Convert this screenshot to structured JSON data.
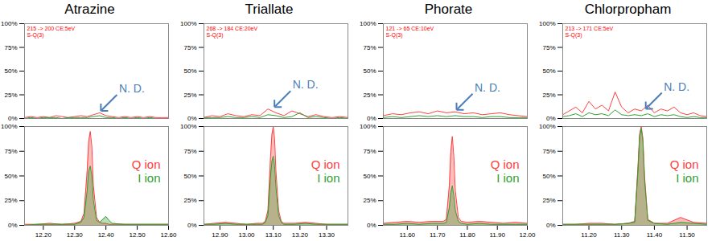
{
  "chart_data": [
    {
      "type": "line",
      "title": "Atrazine",
      "subtitle": [
        "215 -> 200 CE:5eV",
        "S-Q(3)"
      ],
      "x": [
        12.14,
        12.16,
        12.18,
        12.2,
        12.22,
        12.24,
        12.26,
        12.28,
        12.3,
        12.32,
        12.34,
        12.36,
        12.38,
        12.4,
        12.42,
        12.44,
        12.46,
        12.48,
        12.5,
        12.52,
        12.54,
        12.56,
        12.58,
        12.6
      ],
      "series": [
        {
          "color": "#ff4040",
          "values": [
            1,
            2,
            1,
            2,
            1,
            3,
            2,
            1,
            2,
            3,
            2,
            4,
            6,
            3,
            2,
            1,
            2,
            1,
            2,
            1,
            2,
            1,
            1,
            1
          ]
        },
        {
          "color": "#30a030",
          "values": [
            0,
            1,
            0,
            1,
            1,
            1,
            0,
            1,
            1,
            1,
            1,
            2,
            3,
            1,
            1,
            0,
            1,
            0,
            1,
            0,
            1,
            0,
            0,
            0
          ]
        }
      ],
      "xlim": [
        12.14,
        12.6
      ],
      "ylim": [
        0,
        100
      ],
      "yticks": [
        {
          "value": 0,
          "label": "0%"
        },
        {
          "value": 25,
          "label": "25%"
        },
        {
          "value": 50,
          "label": "50%"
        },
        {
          "value": 75,
          "label": "75%"
        },
        {
          "value": 100,
          "label": "100%"
        }
      ],
      "tick_labels": "y",
      "grid": false,
      "annotations": [
        {
          "text": "N. D.",
          "x": 12.38,
          "y": 6
        }
      ]
    },
    {
      "type": "area",
      "x": [
        12.14,
        12.18,
        12.22,
        12.26,
        12.3,
        12.32,
        12.33,
        12.34,
        12.345,
        12.35,
        12.355,
        12.36,
        12.37,
        12.38,
        12.39,
        12.4,
        12.41,
        12.42,
        12.46,
        12.5,
        12.54,
        12.58,
        12.6
      ],
      "series": [
        {
          "name": "Q ion",
          "color": "#ff4040",
          "values": [
            1,
            1,
            2,
            1,
            2,
            4,
            12,
            55,
            85,
            95,
            80,
            40,
            8,
            3,
            2,
            2,
            1,
            1,
            1,
            1,
            1,
            1,
            1
          ]
        },
        {
          "name": "I ion",
          "color": "#30a030",
          "values": [
            0,
            1,
            1,
            1,
            1,
            3,
            8,
            35,
            55,
            60,
            50,
            25,
            5,
            3,
            6,
            9,
            5,
            2,
            1,
            1,
            1,
            1,
            1
          ]
        }
      ],
      "xlim": [
        12.14,
        12.6
      ],
      "ylim": [
        0,
        100
      ],
      "xticks": [
        {
          "value": 12.2,
          "label": "12.20"
        },
        {
          "value": 12.3,
          "label": "12.30"
        },
        {
          "value": 12.4,
          "label": "12.40"
        },
        {
          "value": 12.5,
          "label": "12.50"
        },
        {
          "value": 12.6,
          "label": "12.60"
        }
      ],
      "yticks": [
        {
          "value": 0,
          "label": "0%"
        },
        {
          "value": 25,
          "label": "25%"
        },
        {
          "value": 50,
          "label": "50%"
        },
        {
          "value": 75,
          "label": "75%"
        },
        {
          "value": 100,
          "label": "100%"
        }
      ],
      "legend": "right",
      "grid": false
    },
    {
      "type": "line",
      "title": "Triallate",
      "subtitle": [
        "268 -> 184 CE:20eV",
        "S-Q(3)"
      ],
      "x": [
        12.84,
        12.87,
        12.9,
        12.93,
        12.96,
        12.99,
        13.02,
        13.05,
        13.08,
        13.11,
        13.14,
        13.17,
        13.2,
        13.23,
        13.26,
        13.29,
        13.32,
        13.35,
        13.38
      ],
      "series": [
        {
          "color": "#ff4040",
          "values": [
            1,
            3,
            2,
            5,
            3,
            2,
            4,
            3,
            10,
            6,
            3,
            8,
            5,
            2,
            4,
            2,
            1,
            2,
            1
          ]
        },
        {
          "color": "#30a030",
          "values": [
            1,
            1,
            1,
            2,
            1,
            1,
            2,
            1,
            4,
            3,
            1,
            2,
            6,
            1,
            2,
            1,
            0,
            1,
            0
          ]
        }
      ],
      "xlim": [
        12.84,
        13.38
      ],
      "ylim": [
        0,
        100
      ],
      "yticks": [
        {
          "value": 0,
          "label": "0%"
        },
        {
          "value": 25,
          "label": "25%"
        },
        {
          "value": 50,
          "label": "50%"
        },
        {
          "value": 75,
          "label": "75%"
        },
        {
          "value": 100,
          "label": "100%"
        }
      ],
      "tick_labels": "y",
      "grid": false,
      "annotations": [
        {
          "text": "N. D.",
          "x": 13.1,
          "y": 10
        }
      ]
    },
    {
      "type": "area",
      "x": [
        12.84,
        12.88,
        12.92,
        12.96,
        13.0,
        13.04,
        13.06,
        13.07,
        13.08,
        13.09,
        13.095,
        13.1,
        13.105,
        13.11,
        13.12,
        13.13,
        13.14,
        13.18,
        13.22,
        13.26,
        13.3,
        13.34,
        13.38
      ],
      "series": [
        {
          "name": "Q ion",
          "color": "#ff4040",
          "values": [
            1,
            2,
            3,
            2,
            1,
            2,
            2,
            4,
            15,
            70,
            92,
            100,
            88,
            55,
            15,
            4,
            2,
            2,
            3,
            2,
            1,
            1,
            1
          ]
        },
        {
          "name": "I ion",
          "color": "#30a030",
          "values": [
            1,
            1,
            2,
            1,
            1,
            1,
            1,
            3,
            10,
            50,
            65,
            70,
            60,
            38,
            10,
            3,
            1,
            1,
            2,
            1,
            1,
            1,
            1
          ]
        }
      ],
      "xlim": [
        12.84,
        13.38
      ],
      "ylim": [
        0,
        100
      ],
      "xticks": [
        {
          "value": 12.9,
          "label": "12.90"
        },
        {
          "value": 13.0,
          "label": "13.00"
        },
        {
          "value": 13.1,
          "label": "13.10"
        },
        {
          "value": 13.2,
          "label": "13.20"
        },
        {
          "value": 13.3,
          "label": "13.30"
        }
      ],
      "yticks": [
        {
          "value": 0,
          "label": "0%"
        },
        {
          "value": 25,
          "label": "25%"
        },
        {
          "value": 50,
          "label": "50%"
        },
        {
          "value": 75,
          "label": "75%"
        },
        {
          "value": 100,
          "label": "100%"
        }
      ],
      "legend": "right",
      "grid": false
    },
    {
      "type": "line",
      "title": "Phorate",
      "subtitle": [
        "121 -> 65 CE:10eV",
        "S-Q(3)"
      ],
      "x": [
        11.52,
        11.55,
        11.58,
        11.61,
        11.64,
        11.67,
        11.7,
        11.73,
        11.76,
        11.79,
        11.82,
        11.85,
        11.88,
        11.91,
        11.94,
        11.97,
        12.0
      ],
      "series": [
        {
          "color": "#ff4040",
          "values": [
            3,
            5,
            4,
            6,
            7,
            5,
            8,
            6,
            7,
            5,
            6,
            4,
            5,
            6,
            4,
            3,
            2
          ]
        },
        {
          "color": "#30a030",
          "values": [
            1,
            2,
            1,
            2,
            3,
            2,
            3,
            2,
            3,
            2,
            2,
            1,
            2,
            2,
            1,
            1,
            1
          ]
        }
      ],
      "xlim": [
        11.52,
        12.0
      ],
      "ylim": [
        0,
        100
      ],
      "yticks": [
        {
          "value": 0,
          "label": "0%"
        },
        {
          "value": 25,
          "label": "25%"
        },
        {
          "value": 50,
          "label": "50%"
        },
        {
          "value": 75,
          "label": "75%"
        },
        {
          "value": 100,
          "label": "100%"
        }
      ],
      "tick_labels": "y",
      "grid": false,
      "annotations": [
        {
          "text": "N. D.",
          "x": 11.76,
          "y": 7
        }
      ]
    },
    {
      "type": "area",
      "x": [
        11.52,
        11.56,
        11.6,
        11.64,
        11.68,
        11.72,
        11.73,
        11.74,
        11.745,
        11.75,
        11.755,
        11.76,
        11.77,
        11.78,
        11.8,
        11.84,
        11.88,
        11.92,
        11.96,
        12.0
      ],
      "series": [
        {
          "name": "Q ion",
          "color": "#ff4040",
          "values": [
            2,
            3,
            4,
            3,
            4,
            4,
            6,
            40,
            75,
            90,
            70,
            35,
            8,
            4,
            3,
            4,
            3,
            2,
            3,
            2
          ]
        },
        {
          "name": "I ion",
          "color": "#30a030",
          "values": [
            1,
            1,
            2,
            1,
            2,
            2,
            3,
            18,
            33,
            40,
            30,
            15,
            4,
            2,
            1,
            2,
            1,
            1,
            1,
            1
          ]
        }
      ],
      "xlim": [
        11.52,
        12.0
      ],
      "ylim": [
        0,
        100
      ],
      "xticks": [
        {
          "value": 11.6,
          "label": "11.60"
        },
        {
          "value": 11.7,
          "label": "11.70"
        },
        {
          "value": 11.8,
          "label": "11.80"
        },
        {
          "value": 11.9,
          "label": "11.90"
        },
        {
          "value": 12.0,
          "label": "12.00"
        }
      ],
      "yticks": [
        {
          "value": 0,
          "label": "0%"
        },
        {
          "value": 25,
          "label": "25%"
        },
        {
          "value": 50,
          "label": "50%"
        },
        {
          "value": 75,
          "label": "75%"
        },
        {
          "value": 100,
          "label": "100%"
        }
      ],
      "legend": "right",
      "grid": false
    },
    {
      "type": "line",
      "title": "Chlorpropham",
      "subtitle": [
        "213 -> 171 CE:5eV",
        "S-Q(3)"
      ],
      "x": [
        11.12,
        11.14,
        11.16,
        11.18,
        11.2,
        11.22,
        11.24,
        11.26,
        11.28,
        11.3,
        11.32,
        11.34,
        11.36,
        11.38,
        11.4,
        11.42,
        11.44,
        11.46,
        11.48,
        11.5,
        11.52,
        11.54,
        11.56
      ],
      "series": [
        {
          "color": "#ff4040",
          "values": [
            4,
            8,
            12,
            6,
            18,
            10,
            14,
            8,
            28,
            12,
            6,
            10,
            8,
            14,
            6,
            10,
            8,
            12,
            6,
            4,
            6,
            3,
            2
          ]
        },
        {
          "color": "#30a030",
          "values": [
            2,
            3,
            5,
            2,
            6,
            4,
            5,
            3,
            9,
            4,
            3,
            4,
            3,
            5,
            2,
            4,
            3,
            4,
            2,
            1,
            2,
            1,
            1
          ]
        }
      ],
      "xlim": [
        11.12,
        11.56
      ],
      "ylim": [
        0,
        100
      ],
      "yticks": [
        {
          "value": 0,
          "label": "0%"
        },
        {
          "value": 25,
          "label": "25%"
        },
        {
          "value": 50,
          "label": "50%"
        },
        {
          "value": 75,
          "label": "75%"
        },
        {
          "value": 100,
          "label": "100%"
        }
      ],
      "tick_labels": "y",
      "grid": false,
      "annotations": [
        {
          "text": "N. D.",
          "x": 11.37,
          "y": 8
        }
      ]
    },
    {
      "type": "area",
      "x": [
        11.12,
        11.16,
        11.2,
        11.24,
        11.28,
        11.32,
        11.34,
        11.35,
        11.355,
        11.36,
        11.365,
        11.37,
        11.38,
        11.4,
        11.44,
        11.48,
        11.52,
        11.56
      ],
      "series": [
        {
          "name": "Q ion",
          "color": "#ff4040",
          "values": [
            1,
            1,
            2,
            2,
            1,
            2,
            4,
            60,
            92,
            100,
            88,
            50,
            6,
            2,
            2,
            8,
            3,
            2
          ]
        },
        {
          "name": "I ion",
          "color": "#30a030",
          "values": [
            1,
            1,
            1,
            1,
            1,
            2,
            3,
            55,
            90,
            98,
            85,
            45,
            5,
            2,
            1,
            3,
            2,
            1
          ]
        }
      ],
      "xlim": [
        11.12,
        11.56
      ],
      "ylim": [
        0,
        100
      ],
      "xticks": [
        {
          "value": 11.2,
          "label": "11.20"
        },
        {
          "value": 11.3,
          "label": "11.30"
        },
        {
          "value": 11.4,
          "label": "11.40"
        },
        {
          "value": 11.5,
          "label": "11.50"
        }
      ],
      "yticks": [
        {
          "value": 0,
          "label": "0%"
        },
        {
          "value": 25,
          "label": "25%"
        },
        {
          "value": 50,
          "label": "50%"
        },
        {
          "value": 75,
          "label": "75%"
        },
        {
          "value": 100,
          "label": "100%"
        }
      ],
      "legend": "right",
      "grid": false
    }
  ]
}
